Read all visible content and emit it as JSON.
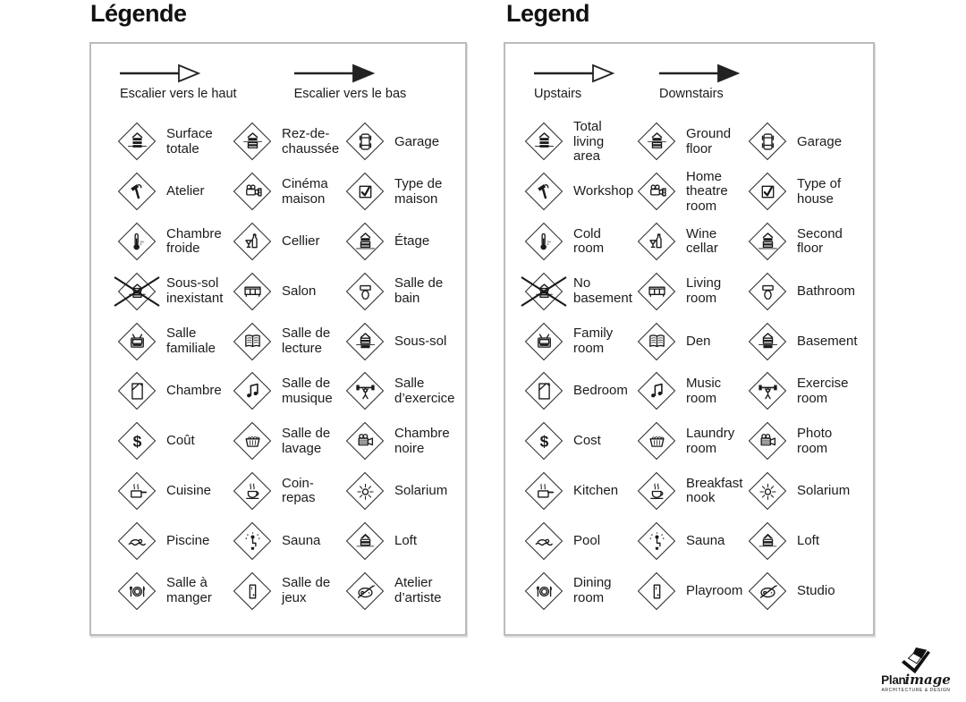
{
  "panels": [
    {
      "title": "Légende",
      "arrows": [
        {
          "label": "Escalier vers le haut",
          "style": "open"
        },
        {
          "label": "Escalier vers le bas",
          "style": "filled"
        }
      ],
      "items": [
        {
          "label": "Surface totale",
          "icon": "total-area-icon"
        },
        {
          "label": "Rez-de-chaussée",
          "icon": "ground-floor-icon"
        },
        {
          "label": "Garage",
          "icon": "garage-icon"
        },
        {
          "label": "Atelier",
          "icon": "workshop-icon"
        },
        {
          "label": "Cinéma maison",
          "icon": "home-theatre-icon"
        },
        {
          "label": "Type de maison",
          "icon": "house-type-icon"
        },
        {
          "label": "Chambre froide",
          "icon": "cold-room-icon"
        },
        {
          "label": "Cellier",
          "icon": "wine-cellar-icon"
        },
        {
          "label": "Étage",
          "icon": "second-floor-icon"
        },
        {
          "label": "Sous-sol inexistant",
          "icon": "no-basement-icon"
        },
        {
          "label": "Salon",
          "icon": "living-room-icon"
        },
        {
          "label": "Salle de bain",
          "icon": "bathroom-icon"
        },
        {
          "label": "Salle familiale",
          "icon": "family-room-icon"
        },
        {
          "label": "Salle de lecture",
          "icon": "den-icon"
        },
        {
          "label": "Sous-sol",
          "icon": "basement-icon"
        },
        {
          "label": "Chambre",
          "icon": "bedroom-icon"
        },
        {
          "label": "Salle de musique",
          "icon": "music-room-icon"
        },
        {
          "label": "Salle d’exercice",
          "icon": "exercise-room-icon"
        },
        {
          "label": "Coût",
          "icon": "cost-icon"
        },
        {
          "label": "Salle de lavage",
          "icon": "laundry-room-icon"
        },
        {
          "label": "Chambre noire",
          "icon": "photo-room-icon"
        },
        {
          "label": "Cuisine",
          "icon": "kitchen-icon"
        },
        {
          "label": "Coin-repas",
          "icon": "breakfast-nook-icon"
        },
        {
          "label": "Solarium",
          "icon": "solarium-icon"
        },
        {
          "label": "Piscine",
          "icon": "pool-icon"
        },
        {
          "label": "Sauna",
          "icon": "sauna-icon"
        },
        {
          "label": "Loft",
          "icon": "loft-icon"
        },
        {
          "label": "Salle à manger",
          "icon": "dining-room-icon"
        },
        {
          "label": "Salle de jeux",
          "icon": "playroom-icon"
        },
        {
          "label": "Atelier d’artiste",
          "icon": "studio-icon"
        }
      ]
    },
    {
      "title": "Legend",
      "arrows": [
        {
          "label": "Upstairs",
          "style": "open"
        },
        {
          "label": "Downstairs",
          "style": "filled"
        }
      ],
      "items": [
        {
          "label": "Total living area",
          "icon": "total-area-icon"
        },
        {
          "label": "Ground floor",
          "icon": "ground-floor-icon"
        },
        {
          "label": "Garage",
          "icon": "garage-icon"
        },
        {
          "label": "Workshop",
          "icon": "workshop-icon"
        },
        {
          "label": "Home theatre room",
          "icon": "home-theatre-icon"
        },
        {
          "label": "Type of house",
          "icon": "house-type-icon"
        },
        {
          "label": "Cold room",
          "icon": "cold-room-icon"
        },
        {
          "label": "Wine cellar",
          "icon": "wine-cellar-icon"
        },
        {
          "label": "Second floor",
          "icon": "second-floor-icon"
        },
        {
          "label": "No basement",
          "icon": "no-basement-icon"
        },
        {
          "label": "Living room",
          "icon": "living-room-icon"
        },
        {
          "label": "Bathroom",
          "icon": "bathroom-icon"
        },
        {
          "label": "Family room",
          "icon": "family-room-icon"
        },
        {
          "label": "Den",
          "icon": "den-icon"
        },
        {
          "label": "Basement",
          "icon": "basement-icon"
        },
        {
          "label": "Bedroom",
          "icon": "bedroom-icon"
        },
        {
          "label": "Music room",
          "icon": "music-room-icon"
        },
        {
          "label": "Exercise room",
          "icon": "exercise-room-icon"
        },
        {
          "label": "Cost",
          "icon": "cost-icon"
        },
        {
          "label": "Laundry room",
          "icon": "laundry-room-icon"
        },
        {
          "label": "Photo room",
          "icon": "photo-room-icon"
        },
        {
          "label": "Kitchen",
          "icon": "kitchen-icon"
        },
        {
          "label": "Breakfast nook",
          "icon": "breakfast-nook-icon"
        },
        {
          "label": "Solarium",
          "icon": "solarium-icon"
        },
        {
          "label": "Pool",
          "icon": "pool-icon"
        },
        {
          "label": "Sauna",
          "icon": "sauna-icon"
        },
        {
          "label": "Loft",
          "icon": "loft-icon"
        },
        {
          "label": "Dining room",
          "icon": "dining-room-icon"
        },
        {
          "label": "Playroom",
          "icon": "playroom-icon"
        },
        {
          "label": "Studio",
          "icon": "studio-icon"
        }
      ]
    }
  ],
  "logo": {
    "brand_bold": "Plan",
    "brand_italic": "image",
    "tagline": "ARCHITECTURE & DESIGN"
  },
  "colors": {
    "background": "#ffffff",
    "panel_border": "#bcbcbc",
    "text": "#1a1a1a",
    "icon_stroke": "#1a1a1a"
  }
}
